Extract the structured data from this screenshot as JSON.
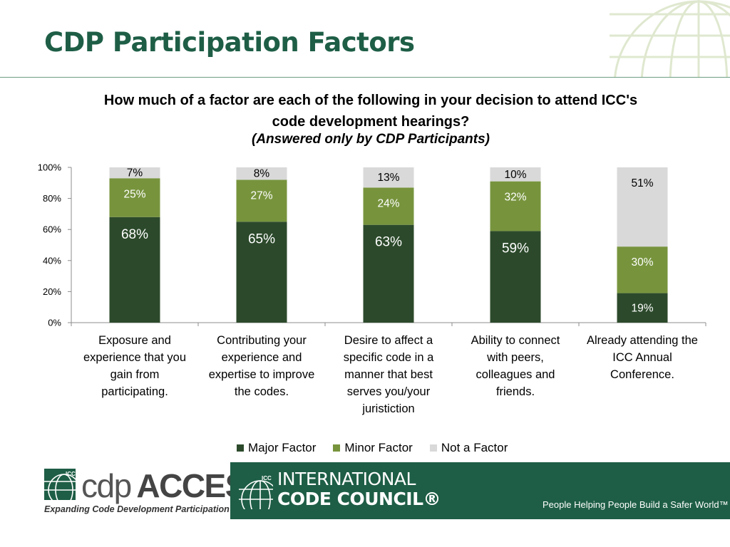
{
  "slide": {
    "title": "CDP Participation Factors"
  },
  "colors": {
    "title": "#1e5e46",
    "major": "#2c4a2b",
    "minor": "#77943d",
    "not": "#d9d9d9",
    "band": "#1e5e46"
  },
  "chart_data": {
    "type": "bar",
    "stacked": true,
    "title": "How much of a factor are each of the following in your decision to attend ICC's code development hearings?",
    "subtitle": "(Answered only by CDP Participants)",
    "categories": [
      "Exposure and experience that you gain from participating.",
      "Contributing your experience and expertise to improve the codes.",
      "Desire to affect a specific code in a manner that best serves you/your juristiction",
      "Ability to connect with peers, colleagues and friends.",
      "Already attending the ICC Annual Conference."
    ],
    "category_lines": [
      [
        "Exposure and",
        "experience that you",
        "gain from",
        "participating."
      ],
      [
        "Contributing your",
        "experience and",
        "expertise to improve",
        "the codes."
      ],
      [
        "Desire to affect a",
        "specific code in a",
        "manner that best",
        "serves you/your",
        "juristiction"
      ],
      [
        "Ability to connect",
        "with peers,",
        "colleagues and",
        "friends."
      ],
      [
        "Already attending the",
        "ICC Annual",
        "Conference."
      ]
    ],
    "series": [
      {
        "name": "Major Factor",
        "values": [
          68,
          65,
          63,
          59,
          19
        ],
        "labels": [
          "68%",
          "65%",
          "63%",
          "59%",
          "19%"
        ]
      },
      {
        "name": "Minor Factor",
        "values": [
          25,
          27,
          24,
          32,
          30
        ],
        "labels": [
          "25%",
          "27%",
          "24%",
          "32%",
          "30%"
        ]
      },
      {
        "name": "Not a Factor",
        "values": [
          7,
          8,
          13,
          10,
          51
        ],
        "labels": [
          "7%",
          "8%",
          "13%",
          "10%",
          "51%"
        ]
      }
    ],
    "ylim": [
      0,
      100
    ],
    "yticks": [
      "0%",
      "20%",
      "40%",
      "60%",
      "80%",
      "100%"
    ],
    "legend": "bottom",
    "grid": false
  },
  "footer": {
    "cdp_logo": {
      "mark": "ICC",
      "word_light": "cdp",
      "word_bold": "ACCESS",
      "tagline": "Expanding Code Development Participation"
    },
    "icc_logo": {
      "mark": "ICC",
      "line1": "INTERNATIONAL",
      "line2": "CODE COUNCIL®"
    },
    "tagline": "People Helping People Build a Safer World™"
  }
}
